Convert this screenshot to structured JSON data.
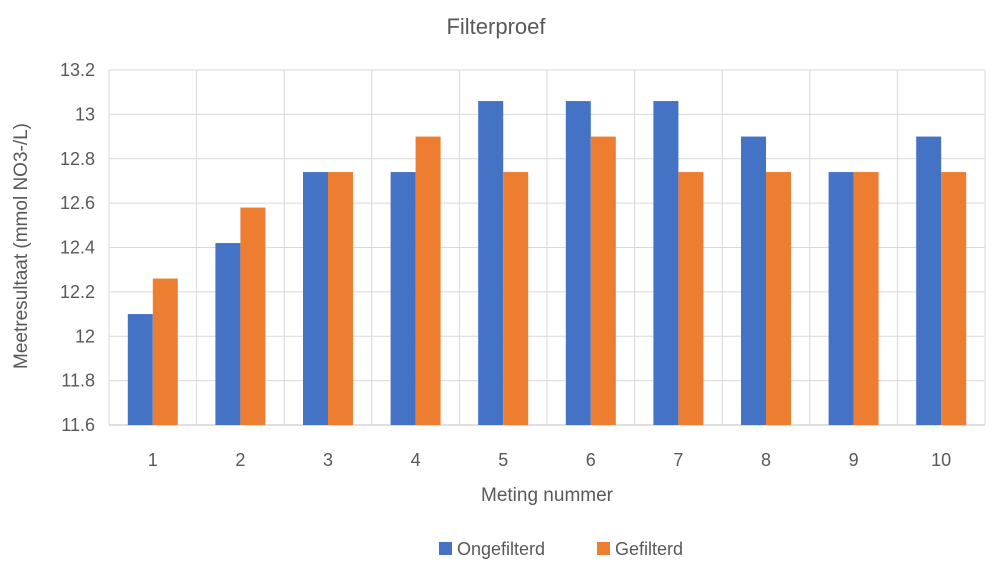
{
  "chart_data": {
    "type": "bar",
    "title": "Filterproef",
    "xlabel": "Meting nummer",
    "ylabel": "Meetresultaat (mmol NO3-/L)",
    "categories": [
      "1",
      "2",
      "3",
      "4",
      "5",
      "6",
      "7",
      "8",
      "9",
      "10"
    ],
    "series": [
      {
        "name": "Ongefilterd",
        "color": "#4472C4",
        "values": [
          12.1,
          12.42,
          12.74,
          12.74,
          13.06,
          13.06,
          13.06,
          12.9,
          12.74,
          12.9
        ]
      },
      {
        "name": "Gefilterd",
        "color": "#ED7D31",
        "values": [
          12.26,
          12.58,
          12.74,
          12.9,
          12.74,
          12.9,
          12.74,
          12.74,
          12.74,
          12.74
        ]
      }
    ],
    "ylim": [
      11.6,
      13.2
    ],
    "yticks": [
      "11.6",
      "11.8",
      "12",
      "12.2",
      "12.4",
      "12.6",
      "12.8",
      "13",
      "13.2"
    ],
    "grid": true,
    "legend_position": "bottom"
  }
}
